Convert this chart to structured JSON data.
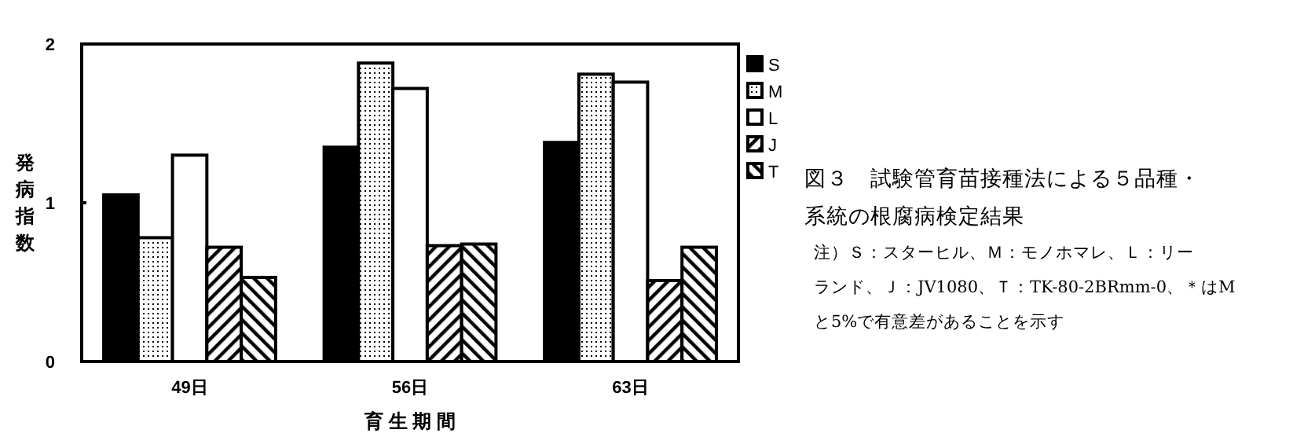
{
  "chart_data": {
    "type": "bar",
    "title": "図３　試験管育苗接種法による５品種・系統の根腐病検定結果",
    "annotations": [
      "注）Ｓ：スターヒル、Ｍ：モノホマレ、Ｌ：リーランド、Ｊ：JV1080、Ｔ：TK-80-2BRmm-0、＊はMと5%で有意差があることを示す"
    ],
    "xlabel": "育 生 期 間",
    "ylabel": "発病指数",
    "categories": [
      "49日",
      "56日",
      "63日"
    ],
    "series": [
      {
        "name": "S",
        "color": "#000000",
        "values": [
          1.05,
          1.35,
          1.38
        ]
      },
      {
        "name": "M",
        "color": "#000000",
        "values": [
          0.78,
          1.88,
          1.81
        ]
      },
      {
        "name": "L",
        "color": "#ffffff",
        "values": [
          1.3,
          1.72,
          1.76
        ]
      },
      {
        "name": "J",
        "color": "#000000",
        "values": [
          0.72,
          0.73,
          0.51
        ]
      },
      {
        "name": "T",
        "color": "#000000",
        "values": [
          0.53,
          0.74,
          0.72
        ]
      }
    ],
    "ylim": [
      0,
      2
    ],
    "yticks": [
      0,
      1,
      2
    ],
    "grid": false,
    "legend": "right"
  }
}
